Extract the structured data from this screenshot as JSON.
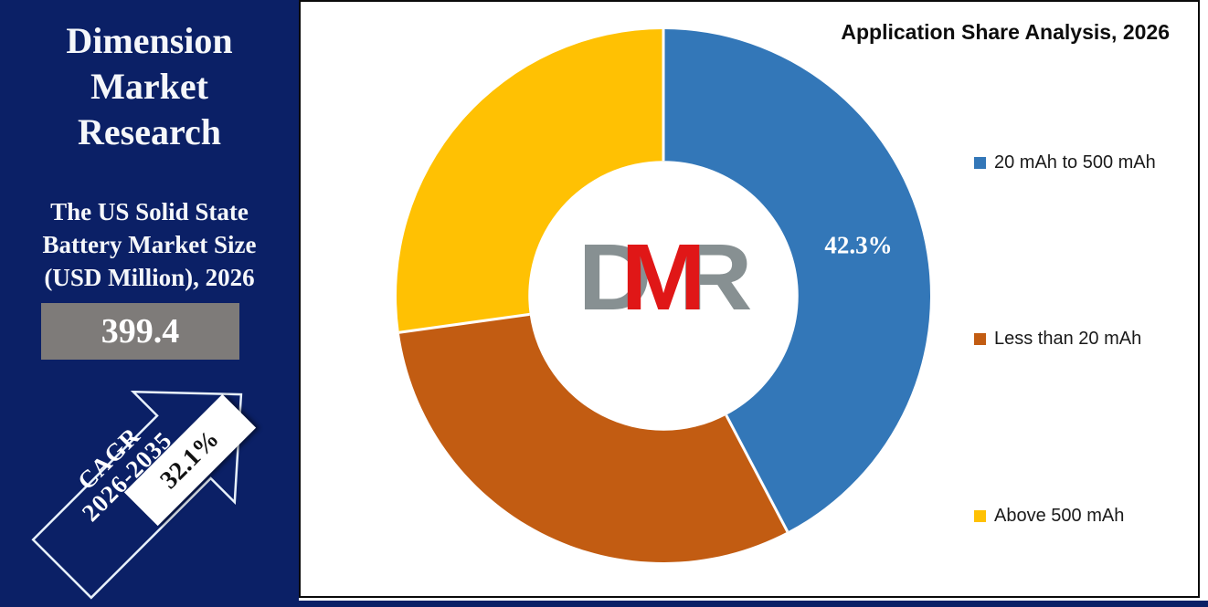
{
  "sidebar": {
    "brand_lines": [
      "Dimension",
      "Market",
      "Research"
    ],
    "subtitle_lines": [
      "The US Solid State",
      "Battery Market Size",
      "(USD Million), 2026"
    ],
    "market_value": "399.4",
    "cagr_title": "CAGR",
    "cagr_period": "2026-2035",
    "cagr_value": "32.1%",
    "colors": {
      "background": "#0B2066",
      "value_box": "#7E7B79",
      "text": "#FFFFFF"
    }
  },
  "chart_data": {
    "type": "donut",
    "title": "Application Share Analysis, 2026",
    "series": [
      {
        "name": "20 mAh to 500 mAh",
        "value": 42.3,
        "color": "#3377B8",
        "data_label": "42.3%"
      },
      {
        "name": "Less than 20 mAh",
        "value": 30.5,
        "color": "#C25C12",
        "data_label": null
      },
      {
        "name": "Above 500 mAh",
        "value": 27.2,
        "color": "#FFC103",
        "data_label": null
      }
    ],
    "start_angle_deg": 0,
    "direction": "clockwise",
    "inner_radius_ratio": 0.506,
    "legend_position": "right",
    "data_label_color": "#FFFFFF",
    "separator_color": "#FFFFFF"
  },
  "logo": {
    "letters": [
      "D",
      "M",
      "R"
    ],
    "gray": "#879092",
    "red": "#E01717"
  }
}
